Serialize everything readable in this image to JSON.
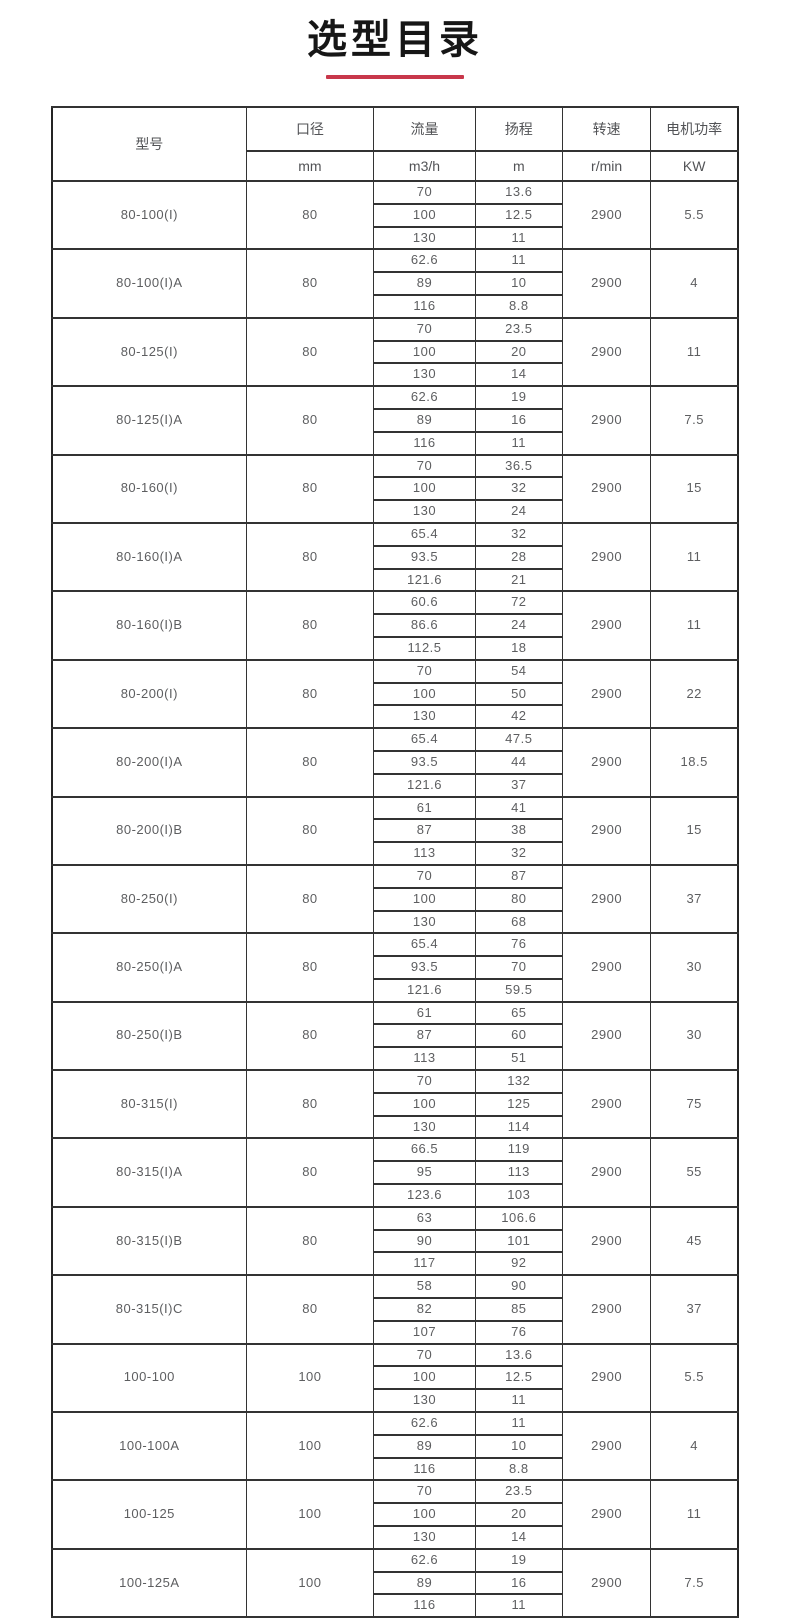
{
  "page": {
    "title": "选型目录",
    "accent_color": "#c8374b"
  },
  "table": {
    "columns": {
      "model": {
        "label": "型号",
        "unit": ""
      },
      "diameter": {
        "label": "口径",
        "unit": "mm"
      },
      "flow": {
        "label": "流量",
        "unit": "m3/h"
      },
      "head": {
        "label": "扬程",
        "unit": "m"
      },
      "speed": {
        "label": "转速",
        "unit": "r/min"
      },
      "power": {
        "label": "电机功率",
        "unit": "KW"
      }
    },
    "rows": [
      {
        "model": "80-100(I)",
        "diameter": "80",
        "flow": [
          "70",
          "100",
          "130"
        ],
        "head": [
          "13.6",
          "12.5",
          "11"
        ],
        "speed": "2900",
        "power": "5.5"
      },
      {
        "model": "80-100(I)A",
        "diameter": "80",
        "flow": [
          "62.6",
          "89",
          "116"
        ],
        "head": [
          "11",
          "10",
          "8.8"
        ],
        "speed": "2900",
        "power": "4"
      },
      {
        "model": "80-125(I)",
        "diameter": "80",
        "flow": [
          "70",
          "100",
          "130"
        ],
        "head": [
          "23.5",
          "20",
          "14"
        ],
        "speed": "2900",
        "power": "11"
      },
      {
        "model": "80-125(I)A",
        "diameter": "80",
        "flow": [
          "62.6",
          "89",
          "116"
        ],
        "head": [
          "19",
          "16",
          "11"
        ],
        "speed": "2900",
        "power": "7.5"
      },
      {
        "model": "80-160(I)",
        "diameter": "80",
        "flow": [
          "70",
          "100",
          "130"
        ],
        "head": [
          "36.5",
          "32",
          "24"
        ],
        "speed": "2900",
        "power": "15"
      },
      {
        "model": "80-160(I)A",
        "diameter": "80",
        "flow": [
          "65.4",
          "93.5",
          "121.6"
        ],
        "head": [
          "32",
          "28",
          "21"
        ],
        "speed": "2900",
        "power": "11"
      },
      {
        "model": "80-160(I)B",
        "diameter": "80",
        "flow": [
          "60.6",
          "86.6",
          "112.5"
        ],
        "head": [
          "72",
          "24",
          "18"
        ],
        "speed": "2900",
        "power": "11"
      },
      {
        "model": "80-200(I)",
        "diameter": "80",
        "flow": [
          "70",
          "100",
          "130"
        ],
        "head": [
          "54",
          "50",
          "42"
        ],
        "speed": "2900",
        "power": "22"
      },
      {
        "model": "80-200(I)A",
        "diameter": "80",
        "flow": [
          "65.4",
          "93.5",
          "121.6"
        ],
        "head": [
          "47.5",
          "44",
          "37"
        ],
        "speed": "2900",
        "power": "18.5"
      },
      {
        "model": "80-200(I)B",
        "diameter": "80",
        "flow": [
          "61",
          "87",
          "113"
        ],
        "head": [
          "41",
          "38",
          "32"
        ],
        "speed": "2900",
        "power": "15"
      },
      {
        "model": "80-250(I)",
        "diameter": "80",
        "flow": [
          "70",
          "100",
          "130"
        ],
        "head": [
          "87",
          "80",
          "68"
        ],
        "speed": "2900",
        "power": "37"
      },
      {
        "model": "80-250(I)A",
        "diameter": "80",
        "flow": [
          "65.4",
          "93.5",
          "121.6"
        ],
        "head": [
          "76",
          "70",
          "59.5"
        ],
        "speed": "2900",
        "power": "30"
      },
      {
        "model": "80-250(I)B",
        "diameter": "80",
        "flow": [
          "61",
          "87",
          "113"
        ],
        "head": [
          "65",
          "60",
          "51"
        ],
        "speed": "2900",
        "power": "30"
      },
      {
        "model": "80-315(I)",
        "diameter": "80",
        "flow": [
          "70",
          "100",
          "130"
        ],
        "head": [
          "132",
          "125",
          "114"
        ],
        "speed": "2900",
        "power": "75"
      },
      {
        "model": "80-315(I)A",
        "diameter": "80",
        "flow": [
          "66.5",
          "95",
          "123.6"
        ],
        "head": [
          "119",
          "113",
          "103"
        ],
        "speed": "2900",
        "power": "55"
      },
      {
        "model": "80-315(I)B",
        "diameter": "80",
        "flow": [
          "63",
          "90",
          "117"
        ],
        "head": [
          "106.6",
          "101",
          "92"
        ],
        "speed": "2900",
        "power": "45"
      },
      {
        "model": "80-315(I)C",
        "diameter": "80",
        "flow": [
          "58",
          "82",
          "107"
        ],
        "head": [
          "90",
          "85",
          "76"
        ],
        "speed": "2900",
        "power": "37"
      },
      {
        "model": "100-100",
        "diameter": "100",
        "flow": [
          "70",
          "100",
          "130"
        ],
        "head": [
          "13.6",
          "12.5",
          "11"
        ],
        "speed": "2900",
        "power": "5.5"
      },
      {
        "model": "100-100A",
        "diameter": "100",
        "flow": [
          "62.6",
          "89",
          "116"
        ],
        "head": [
          "11",
          "10",
          "8.8"
        ],
        "speed": "2900",
        "power": "4"
      },
      {
        "model": "100-125",
        "diameter": "100",
        "flow": [
          "70",
          "100",
          "130"
        ],
        "head": [
          "23.5",
          "20",
          "14"
        ],
        "speed": "2900",
        "power": "11"
      },
      {
        "model": "100-125A",
        "diameter": "100",
        "flow": [
          "62.6",
          "89",
          "116"
        ],
        "head": [
          "19",
          "16",
          "11"
        ],
        "speed": "2900",
        "power": "7.5"
      }
    ]
  }
}
